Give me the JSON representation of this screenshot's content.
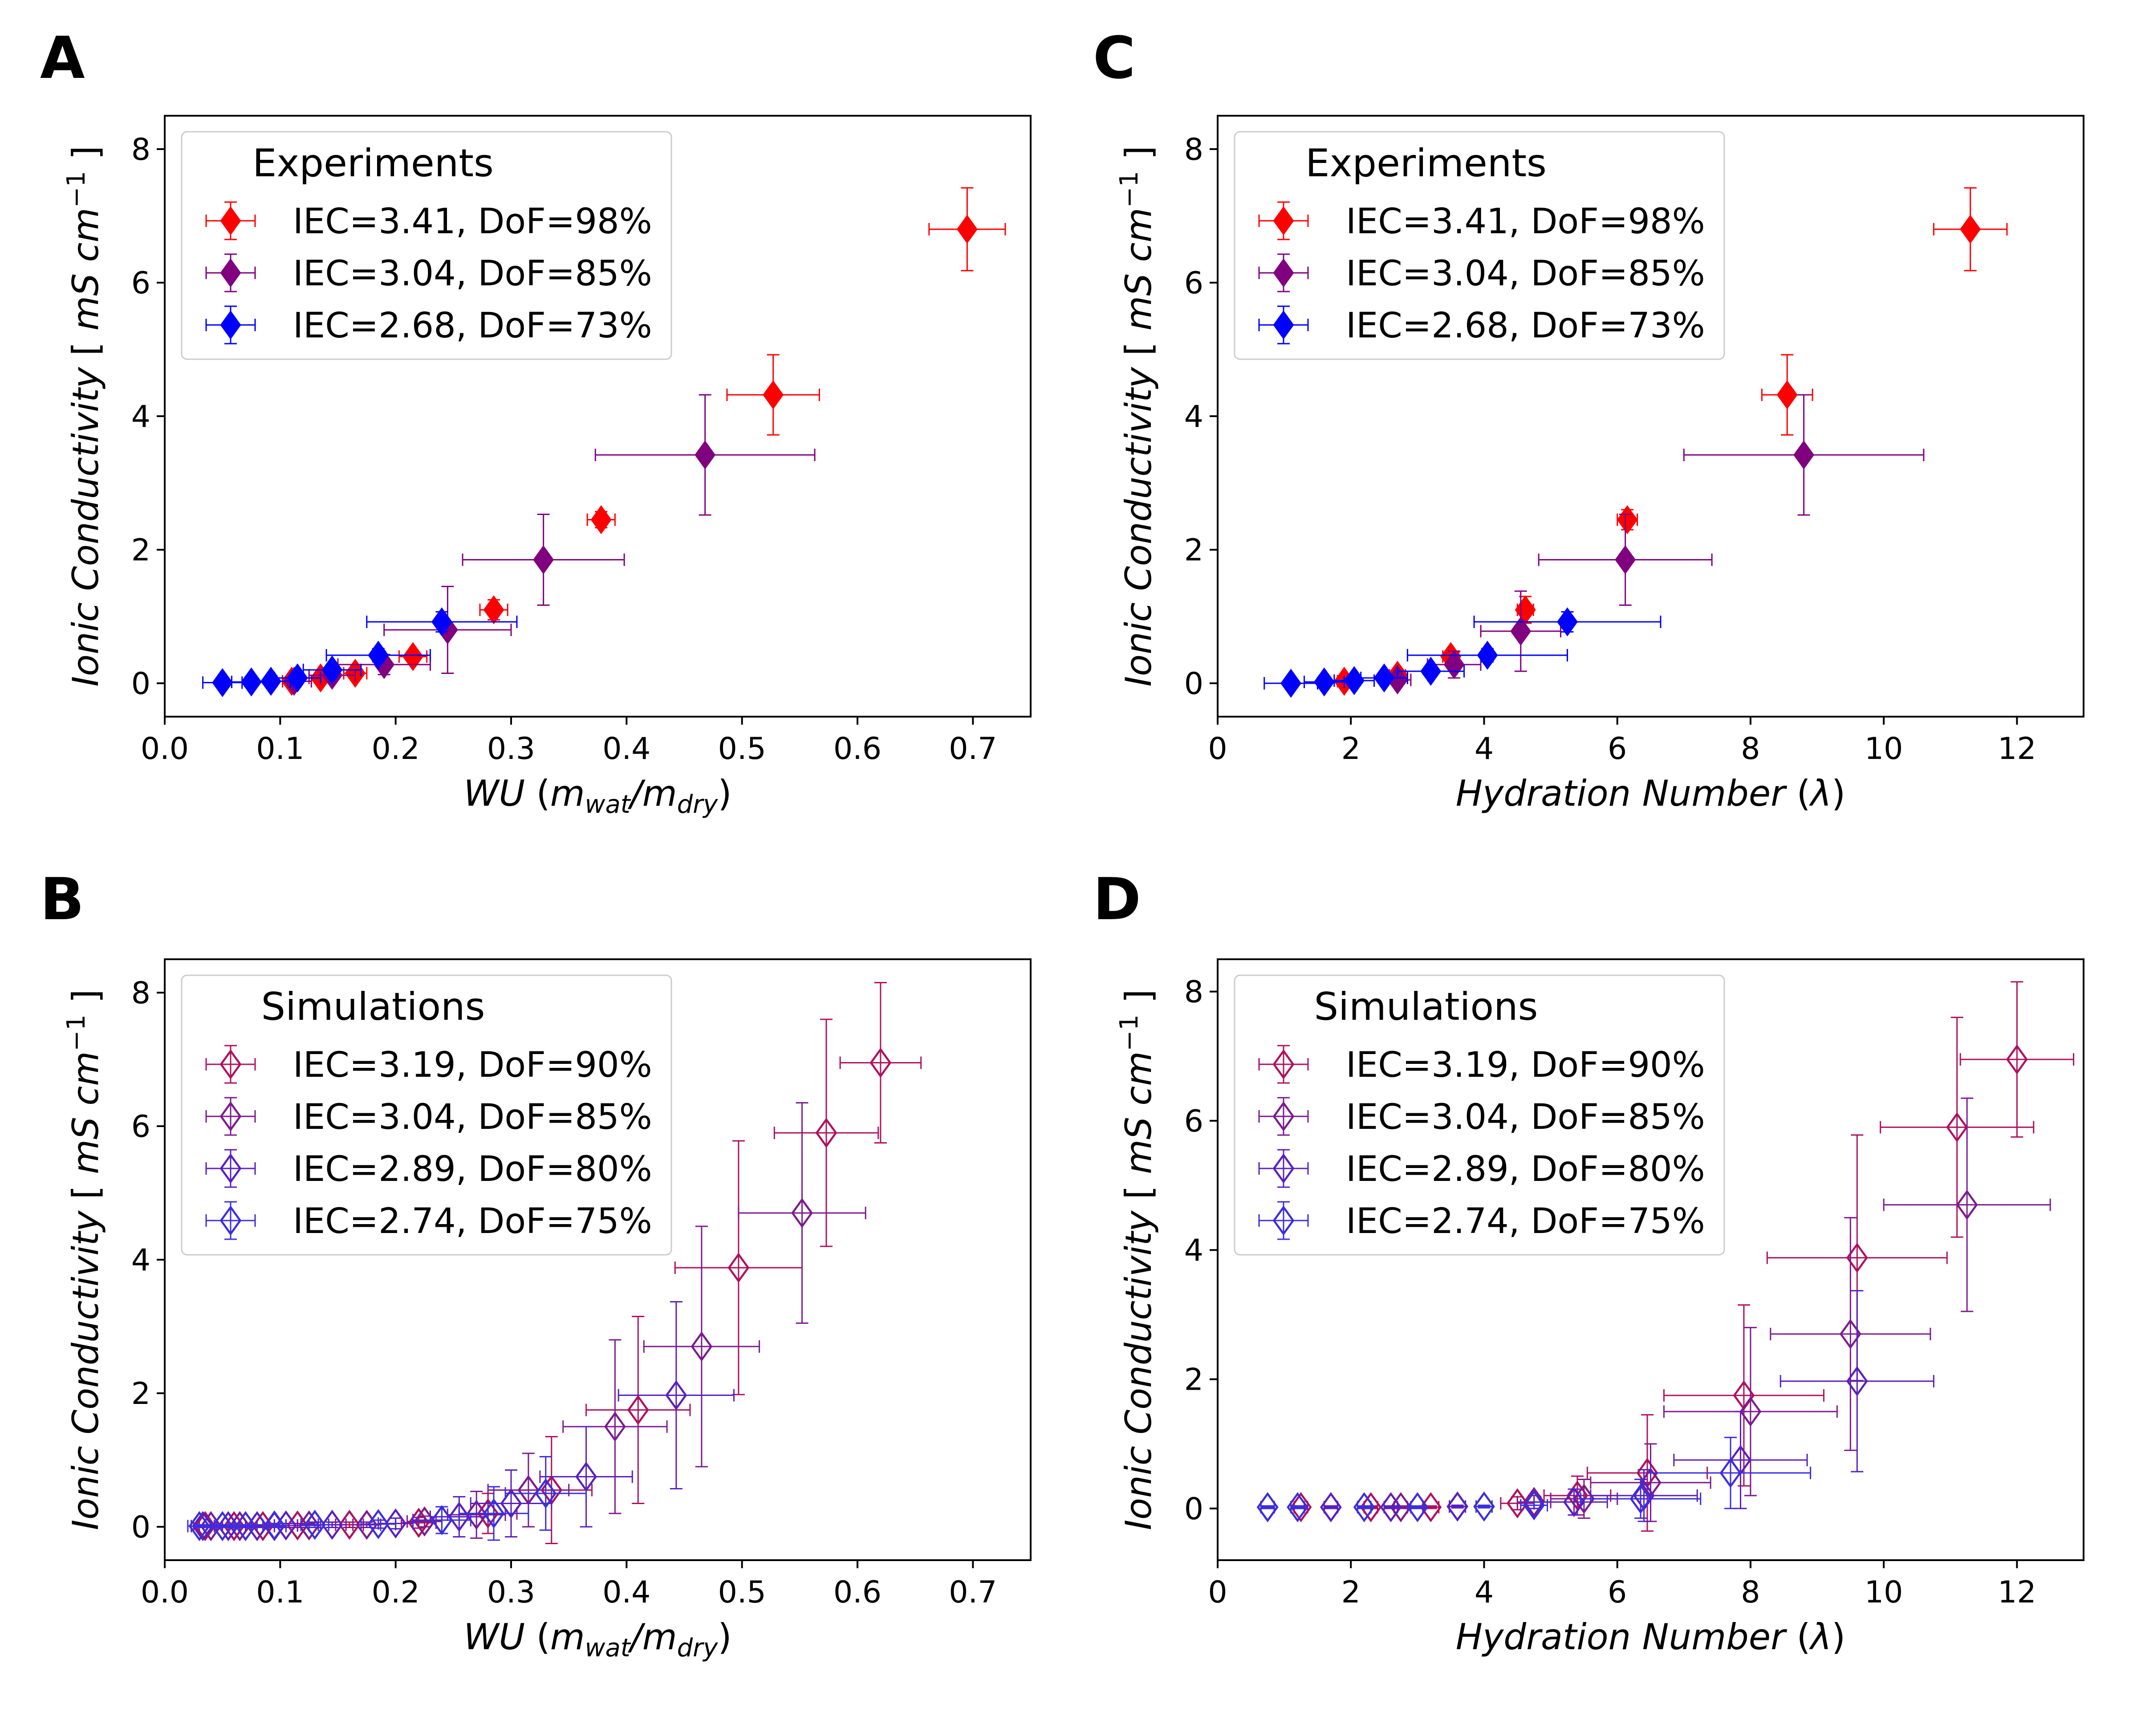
{
  "chart_data": [
    {
      "panel": "A",
      "type": "scatter",
      "xlabel_main": "WU",
      "xlabel_sub1": "wat",
      "xlabel_sub2": "dry",
      "ylabel_main": "Ionic Conductivity",
      "ylabel_unit": "mS cm",
      "ylabel_exp": "−1",
      "xlim": [
        0.0,
        0.75
      ],
      "ylim": [
        -0.5,
        8.5
      ],
      "xticks": [
        0.0,
        0.1,
        0.2,
        0.3,
        0.4,
        0.5,
        0.6,
        0.7
      ],
      "xtick_labels": [
        "0.0",
        "0.1",
        "0.2",
        "0.3",
        "0.4",
        "0.5",
        "0.6",
        "0.7"
      ],
      "yticks": [
        0,
        2,
        4,
        6,
        8
      ],
      "ytick_labels": [
        "0",
        "2",
        "4",
        "6",
        "8"
      ],
      "legend_title": "Experiments",
      "legend_position": "upper-left",
      "marker_fill": "filled",
      "series": [
        {
          "name": "IEC=3.41, DoF=98%",
          "color": "#ff0000",
          "points": [
            [
              0.11,
              0.03,
              0.008,
              0.03
            ],
            [
              0.135,
              0.08,
              0.01,
              0.04
            ],
            [
              0.165,
              0.15,
              0.01,
              0.05
            ],
            [
              0.215,
              0.4,
              0.012,
              0.08
            ],
            [
              0.285,
              1.1,
              0.012,
              0.15
            ],
            [
              0.378,
              2.45,
              0.012,
              0.12
            ],
            [
              0.527,
              4.32,
              0.04,
              0.6
            ],
            [
              0.695,
              6.8,
              0.033,
              0.62
            ]
          ]
        },
        {
          "name": "IEC=3.04, DoF=85%",
          "color": "#800080",
          "points": [
            [
              0.112,
              0.03,
              0.015,
              0.03
            ],
            [
              0.145,
              0.12,
              0.02,
              0.08
            ],
            [
              0.19,
              0.28,
              0.04,
              0.15
            ],
            [
              0.245,
              0.8,
              0.055,
              0.65
            ],
            [
              0.328,
              1.85,
              0.07,
              0.68
            ],
            [
              0.468,
              3.42,
              0.095,
              0.9
            ]
          ]
        },
        {
          "name": "IEC=2.68, DoF=73%",
          "color": "#0000ff",
          "points": [
            [
              0.05,
              0.01,
              0.017,
              0.02
            ],
            [
              0.075,
              0.02,
              0.017,
              0.03
            ],
            [
              0.092,
              0.03,
              0.017,
              0.03
            ],
            [
              0.115,
              0.08,
              0.02,
              0.04
            ],
            [
              0.145,
              0.2,
              0.025,
              0.08
            ],
            [
              0.185,
              0.42,
              0.045,
              0.1
            ],
            [
              0.24,
              0.92,
              0.065,
              0.15
            ]
          ]
        }
      ]
    },
    {
      "panel": "B",
      "type": "scatter",
      "xlabel_main": "WU",
      "xlabel_sub1": "wat",
      "xlabel_sub2": "dry",
      "ylabel_main": "Ionic Conductivity",
      "ylabel_unit": "mS cm",
      "ylabel_exp": "−1",
      "xlim": [
        0.0,
        0.75
      ],
      "ylim": [
        -0.5,
        8.5
      ],
      "xticks": [
        0.0,
        0.1,
        0.2,
        0.3,
        0.4,
        0.5,
        0.6,
        0.7
      ],
      "xtick_labels": [
        "0.0",
        "0.1",
        "0.2",
        "0.3",
        "0.4",
        "0.5",
        "0.6",
        "0.7"
      ],
      "yticks": [
        0,
        2,
        4,
        6,
        8
      ],
      "ytick_labels": [
        "0",
        "2",
        "4",
        "6",
        "8"
      ],
      "legend_title": "Simulations",
      "legend_position": "upper-left",
      "marker_fill": "open",
      "series": [
        {
          "name": "IEC=3.19, DoF=90%",
          "color": "#b0105e",
          "points": [
            [
              0.035,
              0.01,
              0.01,
              0.02
            ],
            [
              0.06,
              0.01,
              0.01,
              0.02
            ],
            [
              0.085,
              0.01,
              0.01,
              0.02
            ],
            [
              0.115,
              0.02,
              0.01,
              0.03
            ],
            [
              0.16,
              0.03,
              0.012,
              0.04
            ],
            [
              0.22,
              0.06,
              0.015,
              0.08
            ],
            [
              0.28,
              0.2,
              0.025,
              0.3
            ],
            [
              0.335,
              0.55,
              0.035,
              0.8
            ],
            [
              0.41,
              1.75,
              0.045,
              1.4
            ],
            [
              0.497,
              3.88,
              0.055,
              1.9
            ],
            [
              0.573,
              5.9,
              0.045,
              1.7
            ],
            [
              0.62,
              6.95,
              0.035,
              1.2
            ]
          ]
        },
        {
          "name": "IEC=3.04, DoF=85%",
          "color": "#7d1a8f",
          "points": [
            [
              0.04,
              0.01,
              0.01,
              0.02
            ],
            [
              0.065,
              0.01,
              0.01,
              0.02
            ],
            [
              0.095,
              0.01,
              0.01,
              0.02
            ],
            [
              0.125,
              0.02,
              0.01,
              0.03
            ],
            [
              0.175,
              0.03,
              0.012,
              0.04
            ],
            [
              0.225,
              0.08,
              0.015,
              0.08
            ],
            [
              0.27,
              0.18,
              0.025,
              0.35
            ],
            [
              0.315,
              0.55,
              0.035,
              0.55
            ],
            [
              0.39,
              1.5,
              0.045,
              1.3
            ],
            [
              0.465,
              2.7,
              0.05,
              1.8
            ],
            [
              0.552,
              4.7,
              0.055,
              1.65
            ]
          ]
        },
        {
          "name": "IEC=2.89, DoF=80%",
          "color": "#5a1fc0",
          "points": [
            [
              0.033,
              0.01,
              0.01,
              0.02
            ],
            [
              0.055,
              0.01,
              0.01,
              0.02
            ],
            [
              0.08,
              0.01,
              0.01,
              0.02
            ],
            [
              0.105,
              0.02,
              0.01,
              0.03
            ],
            [
              0.145,
              0.03,
              0.012,
              0.04
            ],
            [
              0.2,
              0.05,
              0.015,
              0.08
            ],
            [
              0.255,
              0.15,
              0.025,
              0.3
            ],
            [
              0.3,
              0.35,
              0.035,
              0.5
            ],
            [
              0.365,
              0.75,
              0.04,
              0.75
            ],
            [
              0.443,
              1.97,
              0.05,
              1.4
            ]
          ]
        },
        {
          "name": "IEC=2.74, DoF=75%",
          "color": "#3a2ee0",
          "points": [
            [
              0.03,
              0.01,
              0.01,
              0.02
            ],
            [
              0.05,
              0.01,
              0.01,
              0.02
            ],
            [
              0.07,
              0.01,
              0.01,
              0.02
            ],
            [
              0.095,
              0.02,
              0.01,
              0.03
            ],
            [
              0.13,
              0.03,
              0.012,
              0.04
            ],
            [
              0.185,
              0.04,
              0.015,
              0.06
            ],
            [
              0.24,
              0.1,
              0.025,
              0.2
            ],
            [
              0.285,
              0.2,
              0.03,
              0.4
            ],
            [
              0.33,
              0.5,
              0.035,
              0.55
            ]
          ]
        }
      ]
    },
    {
      "panel": "C",
      "type": "scatter",
      "xlabel_main": "Hydration Number",
      "xlabel_symbol": "λ",
      "ylabel_main": "Ionic Conductivity",
      "ylabel_unit": "mS cm",
      "ylabel_exp": "−1",
      "xlim": [
        0,
        13
      ],
      "ylim": [
        -0.5,
        8.5
      ],
      "xticks": [
        0,
        2,
        4,
        6,
        8,
        10,
        12
      ],
      "xtick_labels": [
        "0",
        "2",
        "4",
        "6",
        "8",
        "10",
        "12"
      ],
      "yticks": [
        0,
        2,
        4,
        6,
        8
      ],
      "ytick_labels": [
        "0",
        "2",
        "4",
        "6",
        "8"
      ],
      "legend_title": "Experiments",
      "legend_position": "upper-left",
      "marker_fill": "filled",
      "series": [
        {
          "name": "IEC=3.41, DoF=98%",
          "color": "#ff0000",
          "points": [
            [
              1.9,
              0.03,
              0.1,
              0.03
            ],
            [
              2.7,
              0.12,
              0.12,
              0.05
            ],
            [
              3.5,
              0.4,
              0.12,
              0.08
            ],
            [
              4.62,
              1.1,
              0.12,
              0.2
            ],
            [
              6.15,
              2.45,
              0.15,
              0.15
            ],
            [
              8.55,
              4.32,
              0.38,
              0.6
            ],
            [
              11.3,
              6.8,
              0.55,
              0.62
            ]
          ]
        },
        {
          "name": "IEC=3.04, DoF=85%",
          "color": "#800080",
          "points": [
            [
              2.7,
              0.05,
              0.2,
              0.04
            ],
            [
              3.55,
              0.28,
              0.4,
              0.2
            ],
            [
              4.55,
              0.78,
              0.6,
              0.6
            ],
            [
              6.12,
              1.85,
              1.3,
              0.68
            ],
            [
              8.8,
              3.42,
              1.8,
              0.9
            ]
          ]
        },
        {
          "name": "IEC=2.68, DoF=73%",
          "color": "#0000ff",
          "points": [
            [
              1.1,
              0.0,
              0.4,
              0.02
            ],
            [
              1.6,
              0.02,
              0.3,
              0.03
            ],
            [
              2.05,
              0.04,
              0.3,
              0.03
            ],
            [
              2.5,
              0.08,
              0.35,
              0.04
            ],
            [
              3.2,
              0.18,
              0.5,
              0.08
            ],
            [
              4.05,
              0.42,
              1.2,
              0.1
            ],
            [
              5.25,
              0.92,
              1.4,
              0.15
            ]
          ]
        }
      ]
    },
    {
      "panel": "D",
      "type": "scatter",
      "xlabel_main": "Hydration Number",
      "xlabel_symbol": "λ",
      "ylabel_main": "Ionic Conductivity",
      "ylabel_unit": "mS cm",
      "ylabel_exp": "−1",
      "xlim": [
        0,
        13
      ],
      "ylim": [
        -0.8,
        8.5
      ],
      "xticks": [
        0,
        2,
        4,
        6,
        8,
        10,
        12
      ],
      "xtick_labels": [
        "0",
        "2",
        "4",
        "6",
        "8",
        "10",
        "12"
      ],
      "yticks": [
        0,
        2,
        4,
        6,
        8
      ],
      "ytick_labels": [
        "0",
        "2",
        "4",
        "6",
        "8"
      ],
      "legend_title": "Simulations",
      "legend_position": "upper-left",
      "marker_fill": "open",
      "series": [
        {
          "name": "IEC=3.19, DoF=90%",
          "color": "#b0105e",
          "points": [
            [
              1.25,
              0.02,
              0.1,
              0.02
            ],
            [
              2.3,
              0.02,
              0.1,
              0.02
            ],
            [
              3.2,
              0.02,
              0.12,
              0.02
            ],
            [
              4.5,
              0.08,
              0.25,
              0.1
            ],
            [
              5.4,
              0.2,
              0.5,
              0.3
            ],
            [
              6.45,
              0.55,
              0.9,
              0.9
            ],
            [
              7.9,
              1.75,
              1.2,
              1.4
            ],
            [
              9.6,
              3.88,
              1.35,
              1.9
            ],
            [
              11.1,
              5.9,
              1.15,
              1.7
            ],
            [
              12.0,
              6.95,
              0.85,
              1.2
            ]
          ]
        },
        {
          "name": "IEC=3.04, DoF=85%",
          "color": "#7d1a8f",
          "points": [
            [
              1.7,
              0.02,
              0.1,
              0.02
            ],
            [
              2.75,
              0.02,
              0.1,
              0.02
            ],
            [
              3.6,
              0.03,
              0.12,
              0.02
            ],
            [
              4.75,
              0.1,
              0.25,
              0.1
            ],
            [
              5.5,
              0.15,
              0.5,
              0.3
            ],
            [
              6.5,
              0.4,
              0.9,
              0.6
            ],
            [
              8.0,
              1.5,
              1.3,
              1.3
            ],
            [
              9.5,
              2.7,
              1.2,
              1.8
            ],
            [
              11.25,
              4.7,
              1.25,
              1.65
            ]
          ]
        },
        {
          "name": "IEC=2.89, DoF=80%",
          "color": "#5a1fc0",
          "points": [
            [
              0.75,
              0.02,
              0.1,
              0.02
            ],
            [
              1.7,
              0.02,
              0.1,
              0.02
            ],
            [
              2.6,
              0.02,
              0.1,
              0.02
            ],
            [
              3.6,
              0.03,
              0.12,
              0.02
            ],
            [
              5.35,
              0.1,
              0.5,
              0.2
            ],
            [
              6.4,
              0.2,
              0.8,
              0.4
            ],
            [
              7.85,
              0.75,
              1.0,
              0.75
            ],
            [
              9.6,
              1.97,
              1.15,
              1.4
            ]
          ]
        },
        {
          "name": "IEC=2.74, DoF=75%",
          "color": "#3a2ee0",
          "points": [
            [
              0.75,
              0.02,
              0.1,
              0.02
            ],
            [
              1.2,
              0.02,
              0.1,
              0.02
            ],
            [
              2.2,
              0.02,
              0.1,
              0.02
            ],
            [
              3.0,
              0.02,
              0.1,
              0.02
            ],
            [
              4.0,
              0.03,
              0.12,
              0.02
            ],
            [
              4.75,
              0.05,
              0.2,
              0.05
            ],
            [
              6.35,
              0.15,
              0.9,
              0.3
            ],
            [
              7.7,
              0.55,
              1.2,
              0.55
            ]
          ]
        }
      ]
    }
  ]
}
